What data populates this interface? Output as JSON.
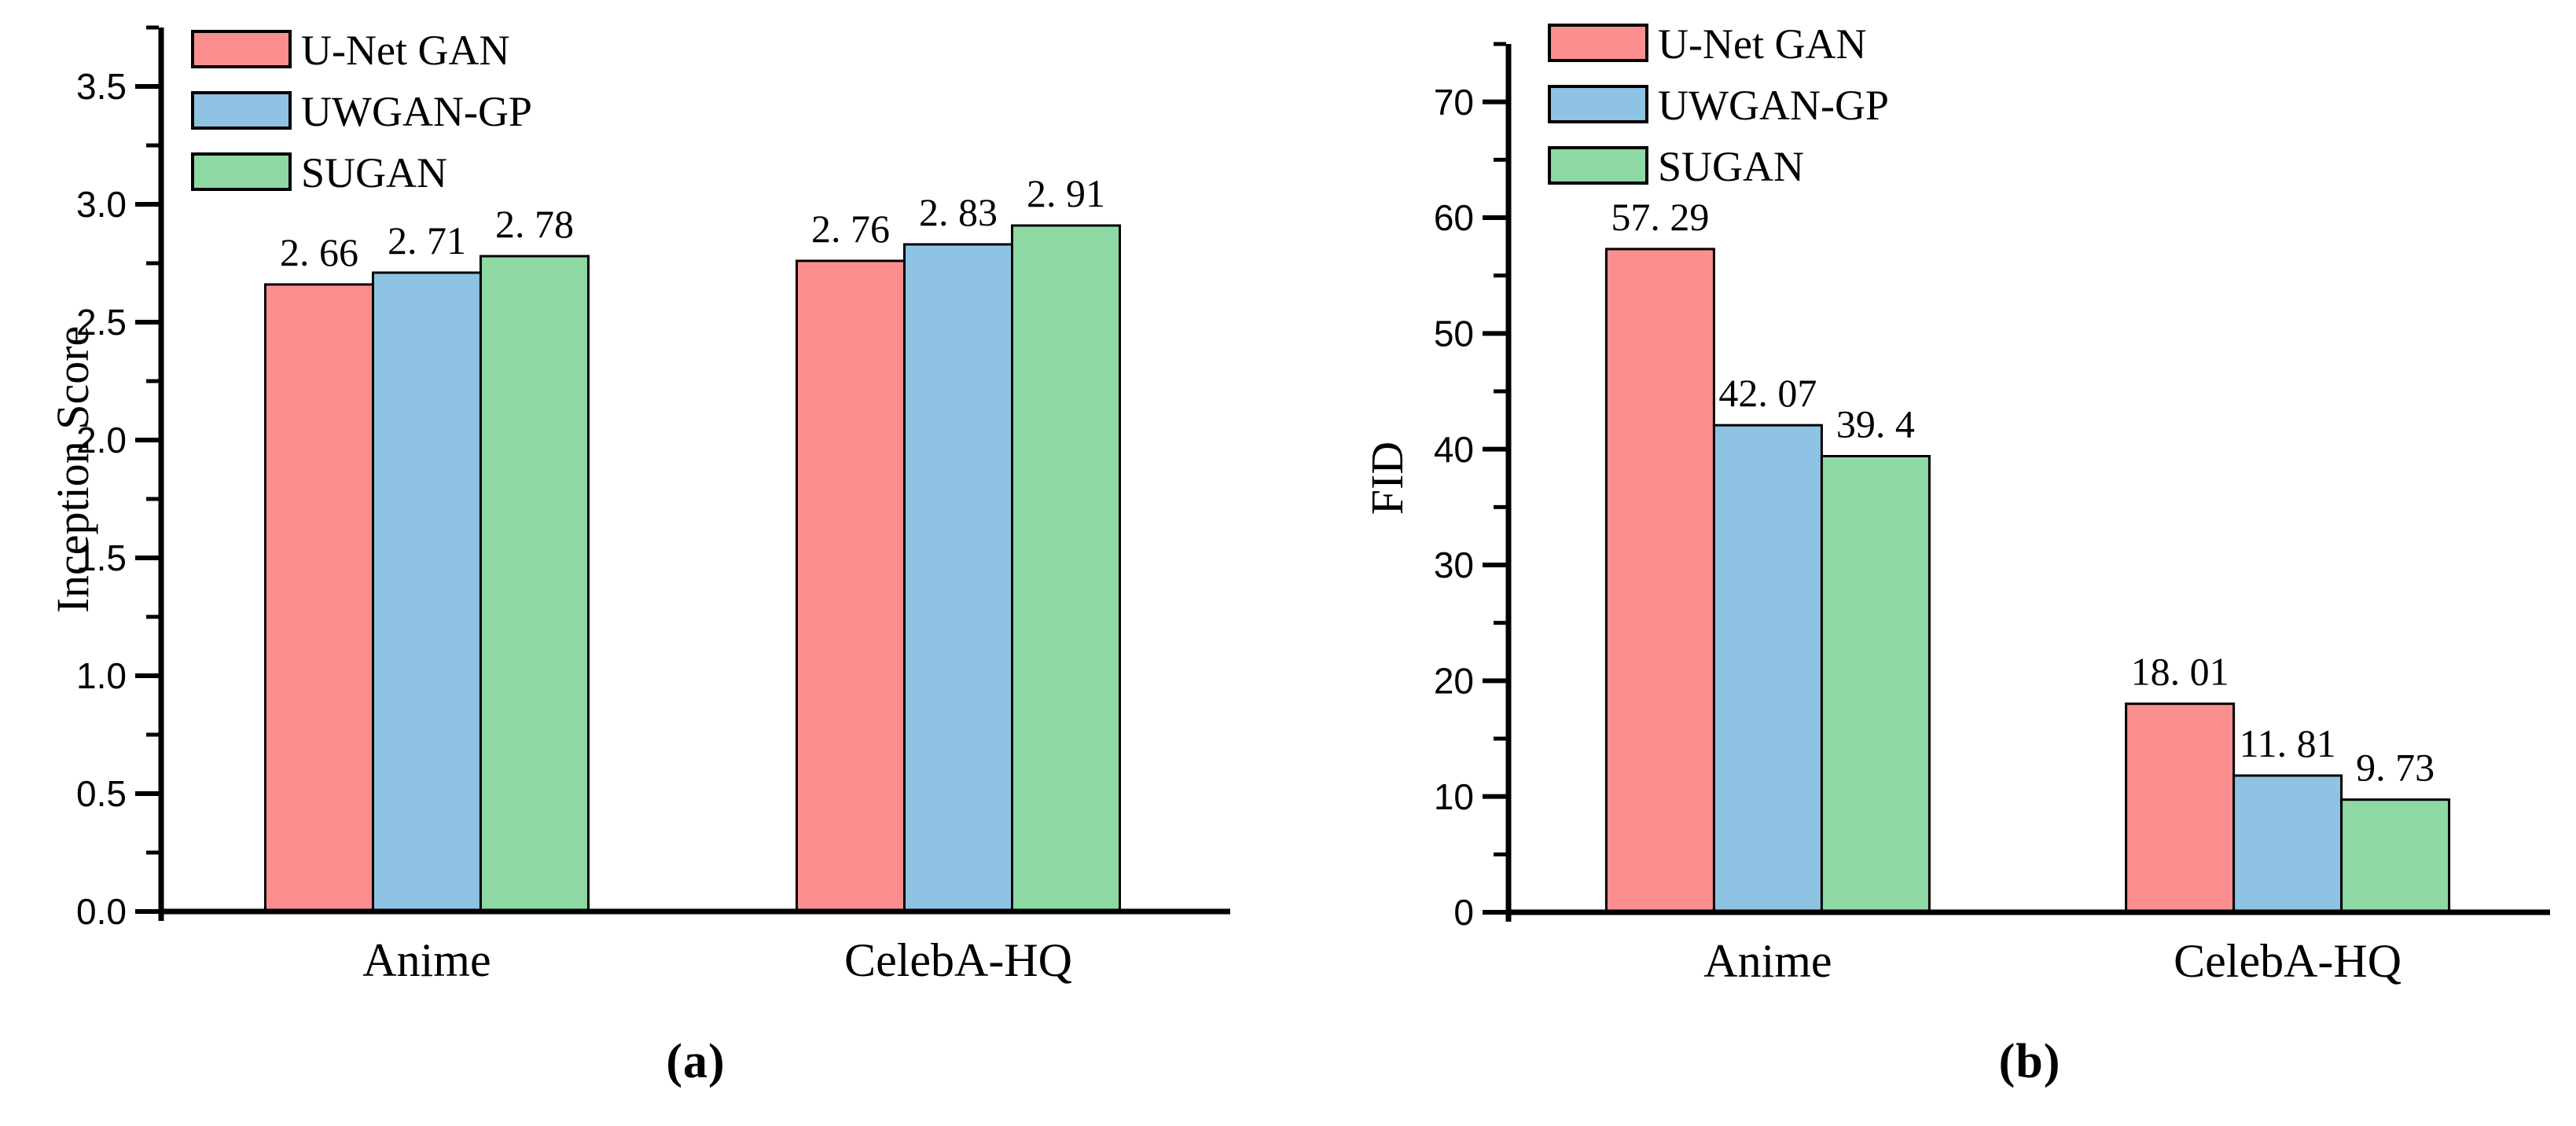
{
  "figure": {
    "caption_a": "(a)",
    "caption_b": "(b)",
    "axis_color": "#000000",
    "background_color": "#ffffff"
  },
  "chart_data": [
    {
      "id": "a",
      "type": "bar",
      "title": "",
      "xlabel": "",
      "ylabel": "Inception Score",
      "caption": "(a)",
      "categories": [
        "Anime",
        "CelebA-HQ"
      ],
      "series": [
        {
          "name": "U-Net GAN",
          "color": "#FB8F8F",
          "values": [
            2.66,
            2.76
          ],
          "value_labels": [
            "2. 66",
            "2. 76"
          ]
        },
        {
          "name": "UWGAN-GP",
          "color": "#8EC3E3",
          "values": [
            2.71,
            2.83
          ],
          "value_labels": [
            "2. 71",
            "2. 83"
          ]
        },
        {
          "name": "SUGAN",
          "color": "#8ED8A3",
          "values": [
            2.78,
            2.91
          ],
          "value_labels": [
            "2. 78",
            "2. 91"
          ]
        }
      ],
      "ylim": [
        0,
        3.75
      ],
      "ytick_major": 0.5,
      "ytick_minor": 0.25,
      "ytick_labels": [
        "0.0",
        "0.5",
        "1.0",
        "1.5",
        "2.0",
        "2.5",
        "3.0",
        "3.5"
      ],
      "grid": false,
      "legend_position": "top-left",
      "axis_color": "#000000"
    },
    {
      "id": "b",
      "type": "bar",
      "title": "",
      "xlabel": "",
      "ylabel": "FID",
      "caption": "(b)",
      "categories": [
        "Anime",
        "CelebA-HQ"
      ],
      "series": [
        {
          "name": "U-Net GAN",
          "color": "#FB8F8F",
          "values": [
            57.29,
            18.01
          ],
          "value_labels": [
            "57. 29",
            "18. 01"
          ]
        },
        {
          "name": "UWGAN-GP",
          "color": "#8EC3E3",
          "values": [
            42.07,
            11.81
          ],
          "value_labels": [
            "42. 07",
            "11. 81"
          ]
        },
        {
          "name": "SUGAN",
          "color": "#8ED8A3",
          "values": [
            39.4,
            9.73
          ],
          "value_labels": [
            "39. 4",
            "9. 73"
          ]
        }
      ],
      "ylim": [
        0,
        75
      ],
      "ytick_major": 10,
      "ytick_minor": 5,
      "ytick_labels": [
        "0",
        "10",
        "20",
        "30",
        "40",
        "50",
        "60",
        "70"
      ],
      "grid": false,
      "legend_position": "top-left",
      "axis_color": "#000000"
    }
  ]
}
